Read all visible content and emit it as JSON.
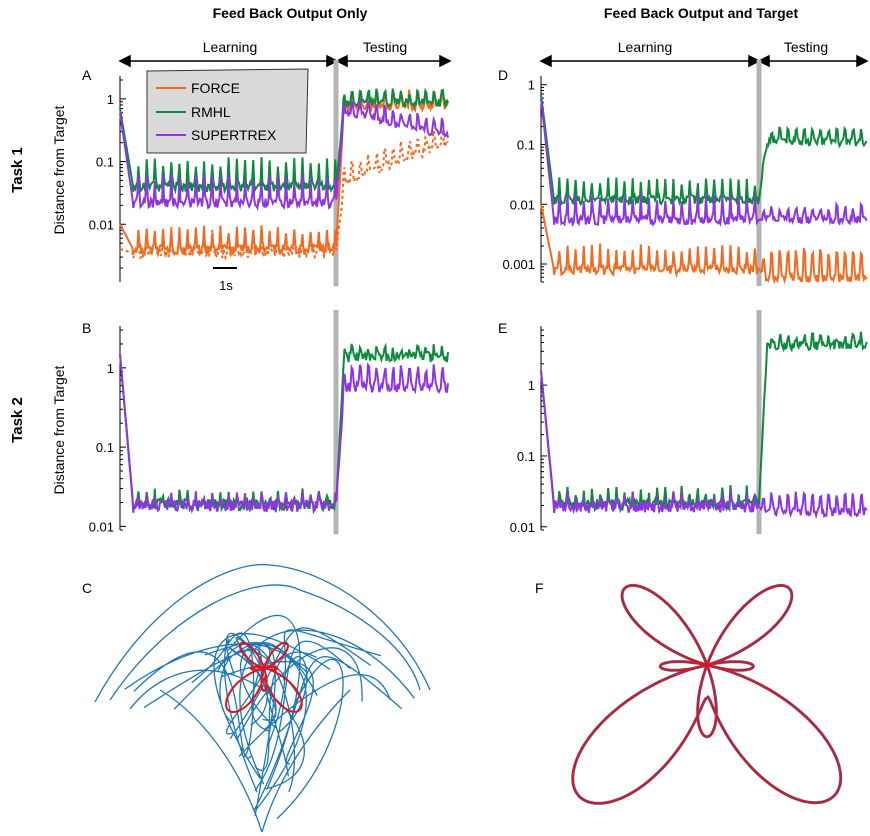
{
  "figure": {
    "col_titles": [
      "Feed Back Output Only",
      "Feed Back Output and Target"
    ],
    "row_titles": [
      "Task 1",
      "Task 2"
    ],
    "ylabel": "Distance from Target",
    "phase_labels": {
      "learning": "Learning",
      "testing": "Testing"
    },
    "scalebar_label": "1s",
    "legend": [
      "FORCE",
      "RMHL",
      "SUPERTREX"
    ],
    "colors": {
      "FORCE": "#f26b21",
      "RMHL": "#0d8a3e",
      "SUPERTREX": "#8e35e0",
      "divider": "#b3b3b3",
      "trajectory": "#1f77b4",
      "target": "#e3121b",
      "legend_bg": "#d9d9d9"
    }
  },
  "chart_data": [
    {
      "panel": "A",
      "type": "line",
      "yscale": "log",
      "ylim": [
        0.0012,
        2
      ],
      "ytick_labels": [
        "1",
        "0.1",
        "0.01"
      ],
      "ytick_values": [
        1,
        0.1,
        0.01
      ],
      "x_learning_end": 0.8,
      "x_range": [
        0,
        1
      ],
      "series": [
        {
          "name": "FORCE",
          "style": "solid",
          "learn_base": 0.004,
          "learn_amp": 0.35,
          "test_start": 0.9,
          "test_end": 0.9,
          "test_amp": 0.3,
          "start": 0.01
        },
        {
          "name": "FORCE",
          "style": "dotted",
          "learn_base": 0.0035,
          "learn_amp": 0.4,
          "test_start": 0.05,
          "test_end": 0.25,
          "test_amp": 0.4,
          "start": 0.004
        },
        {
          "name": "RMHL",
          "style": "solid",
          "learn_base": 0.04,
          "learn_amp": 0.5,
          "test_start": 1.0,
          "test_end": 1.0,
          "test_amp": 0.25,
          "start": 0.7
        },
        {
          "name": "SUPERTREX",
          "style": "solid",
          "learn_base": 0.022,
          "learn_amp": 0.5,
          "test_start": 0.8,
          "test_end": 0.3,
          "test_amp": 0.3,
          "start": 0.6
        }
      ]
    },
    {
      "panel": "B",
      "type": "line",
      "yscale": "log",
      "ylim": [
        0.009,
        3
      ],
      "ytick_labels": [
        "1",
        "0.1",
        "0.01"
      ],
      "ytick_values": [
        1,
        0.1,
        0.01
      ],
      "x_learning_end": 0.8,
      "series": [
        {
          "name": "RMHL",
          "learn_base": 0.019,
          "learn_amp": 0.12,
          "test_start": 1.5,
          "test_end": 1.5,
          "test_amp": 0.15,
          "start": 1.5
        },
        {
          "name": "SUPERTREX",
          "learn_base": 0.018,
          "learn_amp": 0.12,
          "test_start": 0.7,
          "test_end": 0.7,
          "test_amp": 0.35,
          "start": 1.5
        }
      ]
    },
    {
      "panel": "D",
      "type": "line",
      "yscale": "log",
      "ylim": [
        0.0005,
        1.2
      ],
      "ytick_labels": [
        "1",
        "0.1",
        "0.01",
        "0.001"
      ],
      "ytick_values": [
        1,
        0.1,
        0.01,
        0.001
      ],
      "x_learning_end": 0.8,
      "series": [
        {
          "name": "FORCE",
          "learn_base": 0.0008,
          "learn_amp": 0.45,
          "test_start": 0.0009,
          "test_end": 0.0009,
          "test_amp": 0.7,
          "start": 0.01
        },
        {
          "name": "RMHL",
          "learn_base": 0.012,
          "learn_amp": 0.35,
          "test_start": 0.13,
          "test_end": 0.13,
          "test_amp": 0.3,
          "start": 0.7
        },
        {
          "name": "SUPERTREX",
          "learn_base": 0.0055,
          "learn_amp": 0.45,
          "test_start": 0.0065,
          "test_end": 0.0065,
          "test_amp": 0.3,
          "start": 0.6
        }
      ]
    },
    {
      "panel": "E",
      "type": "line",
      "yscale": "log",
      "ylim": [
        0.009,
        6
      ],
      "ytick_labels": [
        "1",
        "0.1",
        "0.01"
      ],
      "ytick_values": [
        1,
        0.1,
        0.01
      ],
      "x_learning_end": 0.8,
      "series": [
        {
          "name": "RMHL",
          "learn_base": 0.021,
          "learn_amp": 0.2,
          "test_start": 4.0,
          "test_end": 4.0,
          "test_amp": 0.2,
          "start": 1.6
        },
        {
          "name": "SUPERTREX",
          "learn_base": 0.019,
          "learn_amp": 0.15,
          "test_start": 0.02,
          "test_end": 0.02,
          "test_amp": 0.35,
          "start": 1.6
        }
      ]
    },
    {
      "panel": "C",
      "type": "scatter",
      "description_series": [
        "output trajectory",
        "target butterfly"
      ],
      "target": "butterfly",
      "trajectory": "chaotic"
    },
    {
      "panel": "F",
      "type": "scatter",
      "target": "butterfly",
      "trajectory": "matched"
    }
  ]
}
